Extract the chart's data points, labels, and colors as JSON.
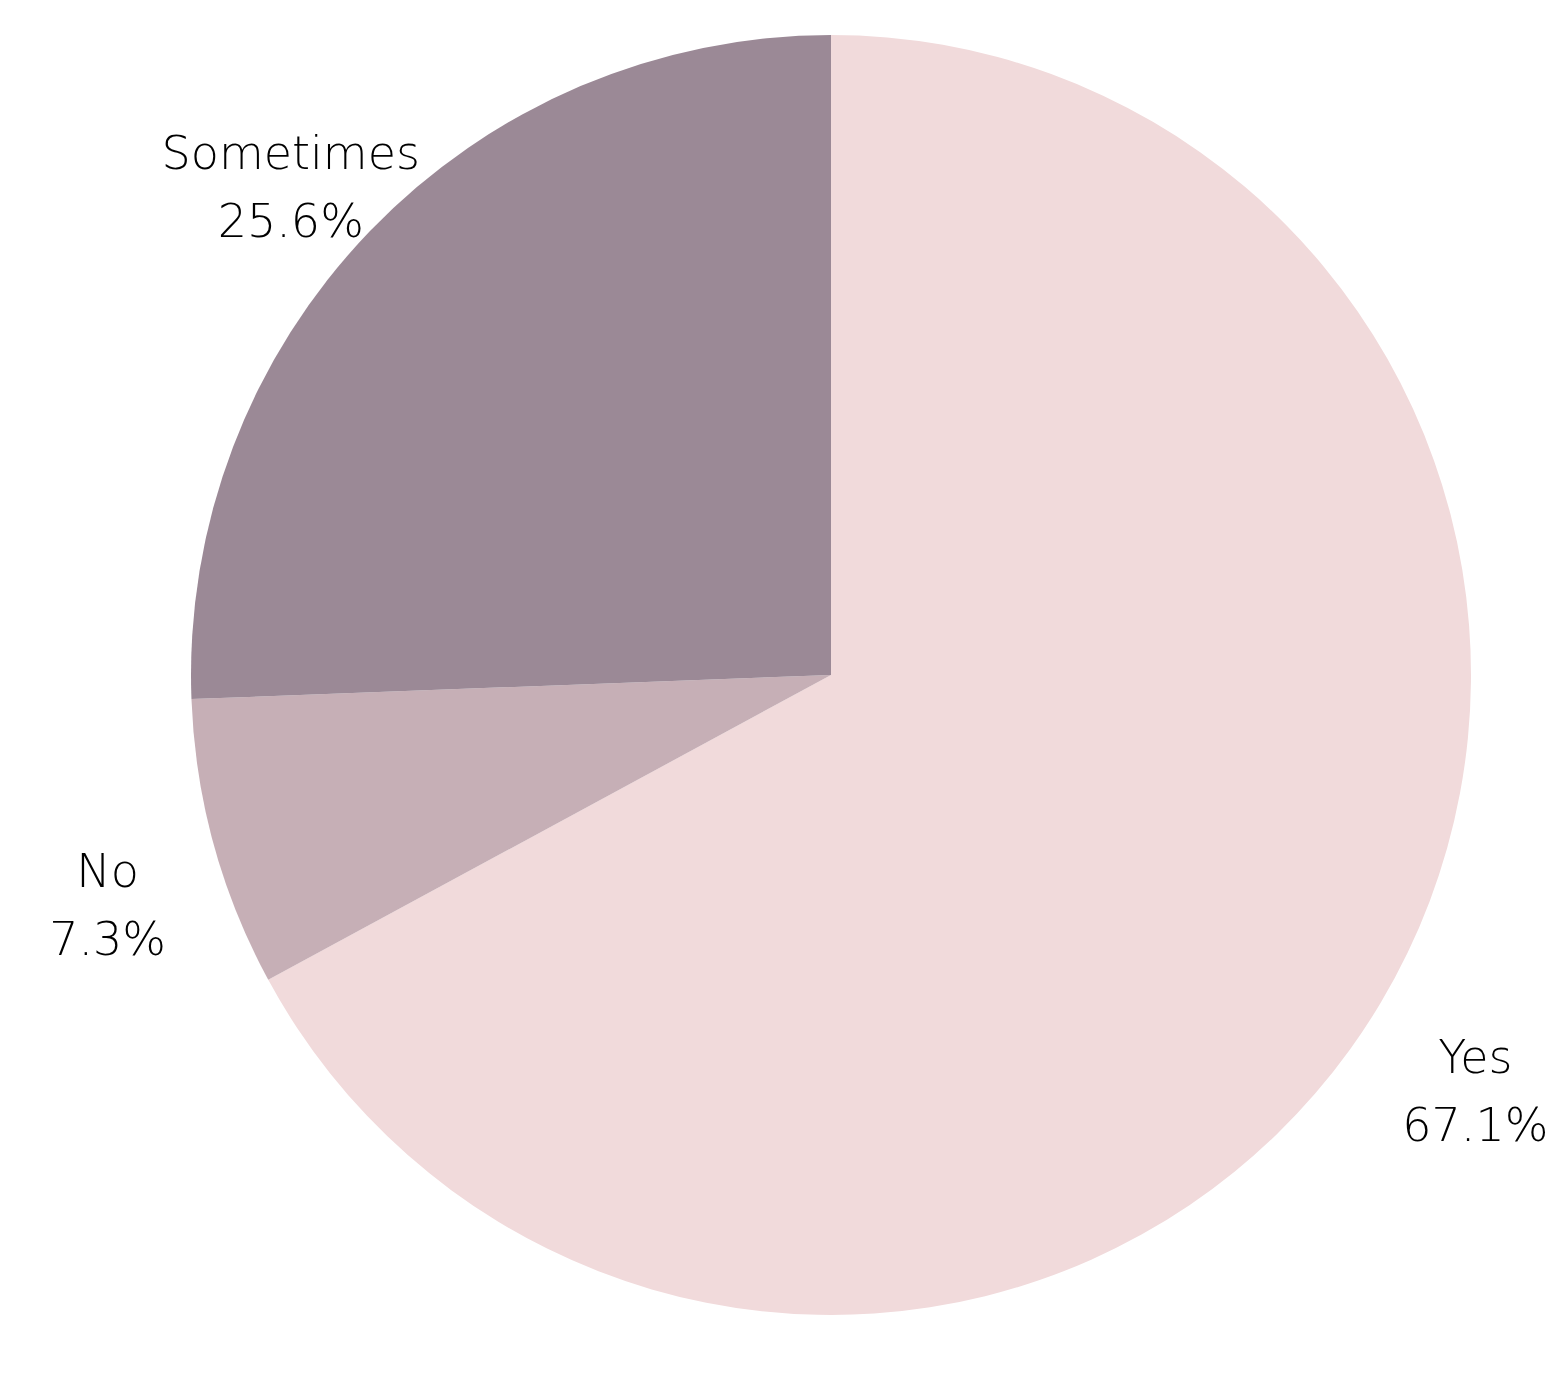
{
  "chart_data": {
    "type": "pie",
    "categories": [
      "Yes",
      "No",
      "Sometimes"
    ],
    "values": [
      67.1,
      7.3,
      25.6
    ],
    "colors": [
      "#f1dadb",
      "#c6afb6",
      "#9b8996"
    ],
    "value_labels": [
      "67.1%",
      "7.3%",
      "25.6%"
    ]
  }
}
